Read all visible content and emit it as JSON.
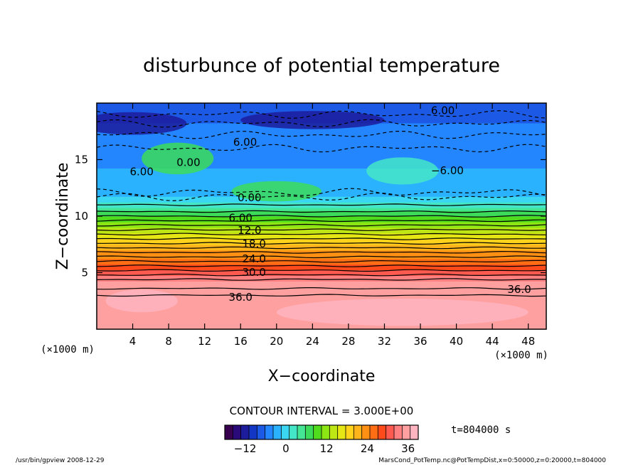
{
  "chart_data": {
    "type": "heatmap",
    "title": "disturbunce of potential temperature",
    "xlabel": "X−coordinate",
    "ylabel": "Z−coordinate",
    "x_unit": "(×1000 m)",
    "y_unit": "(×1000 m)",
    "xlim": [
      0,
      50
    ],
    "ylim": [
      0,
      20
    ],
    "x_ticks": [
      4,
      8,
      12,
      16,
      20,
      24,
      28,
      32,
      36,
      40,
      44,
      48
    ],
    "y_ticks": [
      5,
      10,
      15
    ],
    "contour_interval_text": "CONTOUR INTERVAL = 3.000E+00",
    "time_text": "t=804000 s",
    "colorbar": {
      "min": -18,
      "max": 39,
      "ticks": [
        -12,
        0,
        12,
        24,
        36
      ],
      "colors": [
        "#3a0050",
        "#2a0a78",
        "#1c1c9c",
        "#1436c4",
        "#1c5ae6",
        "#2486ff",
        "#2ab2ff",
        "#3ad6f2",
        "#44e6c8",
        "#44e696",
        "#3cdc5a",
        "#50dc1c",
        "#8ce614",
        "#bee614",
        "#e6e614",
        "#ffd21c",
        "#ffb41c",
        "#ff9014",
        "#ff6e14",
        "#ff4a1c",
        "#ff5a50",
        "#ff8080",
        "#ffa0a0",
        "#ffb4c0"
      ]
    },
    "z_profile": [
      {
        "z": 0,
        "value": 36
      },
      {
        "z": 4,
        "value": 36
      },
      {
        "z": 4.5,
        "value": 33
      },
      {
        "z": 5.5,
        "value": 28
      },
      {
        "z": 7,
        "value": 22
      },
      {
        "z": 8.5,
        "value": 15
      },
      {
        "z": 10,
        "value": 8
      },
      {
        "z": 11,
        "value": 2
      },
      {
        "z": 12,
        "value": -2
      },
      {
        "z": 16,
        "value": -5
      },
      {
        "z": 18,
        "value": -6
      },
      {
        "z": 20,
        "value": -8
      }
    ],
    "contour_labels": [
      {
        "text": "6.00",
        "x": 38.5,
        "z": 19.4
      },
      {
        "text": "6.00",
        "x": 16.5,
        "z": 16.6
      },
      {
        "text": "6.00",
        "x": 5.0,
        "z": 14.0
      },
      {
        "text": "0.00",
        "x": 10.2,
        "z": 14.8
      },
      {
        "text": "−6.00",
        "x": 39.0,
        "z": 14.1
      },
      {
        "text": "0.00",
        "x": 17.0,
        "z": 11.7
      },
      {
        "text": "6.00",
        "x": 16.0,
        "z": 9.9
      },
      {
        "text": "12.0",
        "x": 17.0,
        "z": 8.8
      },
      {
        "text": "18.0",
        "x": 17.5,
        "z": 7.6
      },
      {
        "text": "24.0",
        "x": 17.5,
        "z": 6.3
      },
      {
        "text": "30.0",
        "x": 17.5,
        "z": 5.1
      },
      {
        "text": "36.0",
        "x": 16.0,
        "z": 2.9
      },
      {
        "text": "36.0",
        "x": 47.0,
        "z": 3.6
      }
    ],
    "solid_contours_z": [
      3.0,
      3.6,
      4.4,
      4.8,
      5.2,
      5.6,
      6.0,
      6.4,
      6.8,
      7.2,
      7.6,
      8.0,
      8.4,
      8.8,
      9.2,
      9.6,
      10.0,
      10.4,
      11.0
    ],
    "dashed_contours_z": [
      11.7,
      12.1,
      16.0,
      17.2,
      18.2,
      19.0
    ]
  },
  "footer": {
    "left": "/usr/bin/gpview   2008-12-29",
    "right": "MarsCond_PotTemp.nc@PotTempDist,x=0:50000,z=0:20000,t=804000"
  }
}
